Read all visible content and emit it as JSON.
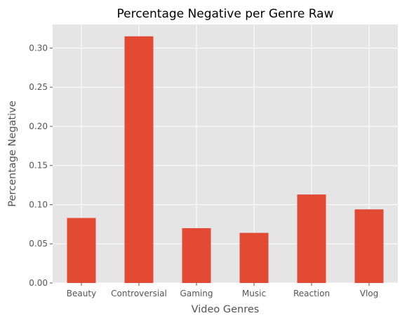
{
  "chart_data": {
    "type": "bar",
    "title": "Percentage Negative per Genre Raw",
    "xlabel": "Video Genres",
    "ylabel": "Percentage Negative",
    "categories": [
      "Beauty",
      "Controversial",
      "Gaming",
      "Music",
      "Reaction",
      "Vlog"
    ],
    "values": [
      0.083,
      0.315,
      0.07,
      0.064,
      0.113,
      0.094
    ],
    "ylim": [
      0,
      0.33
    ],
    "yticks": [
      "0.00",
      "0.05",
      "0.10",
      "0.15",
      "0.20",
      "0.25",
      "0.30"
    ],
    "grid": true,
    "legend": "none",
    "colors": {
      "bar": "#e24a33",
      "plot_background": "#e5e5e5",
      "grid": "#ffffff"
    }
  }
}
